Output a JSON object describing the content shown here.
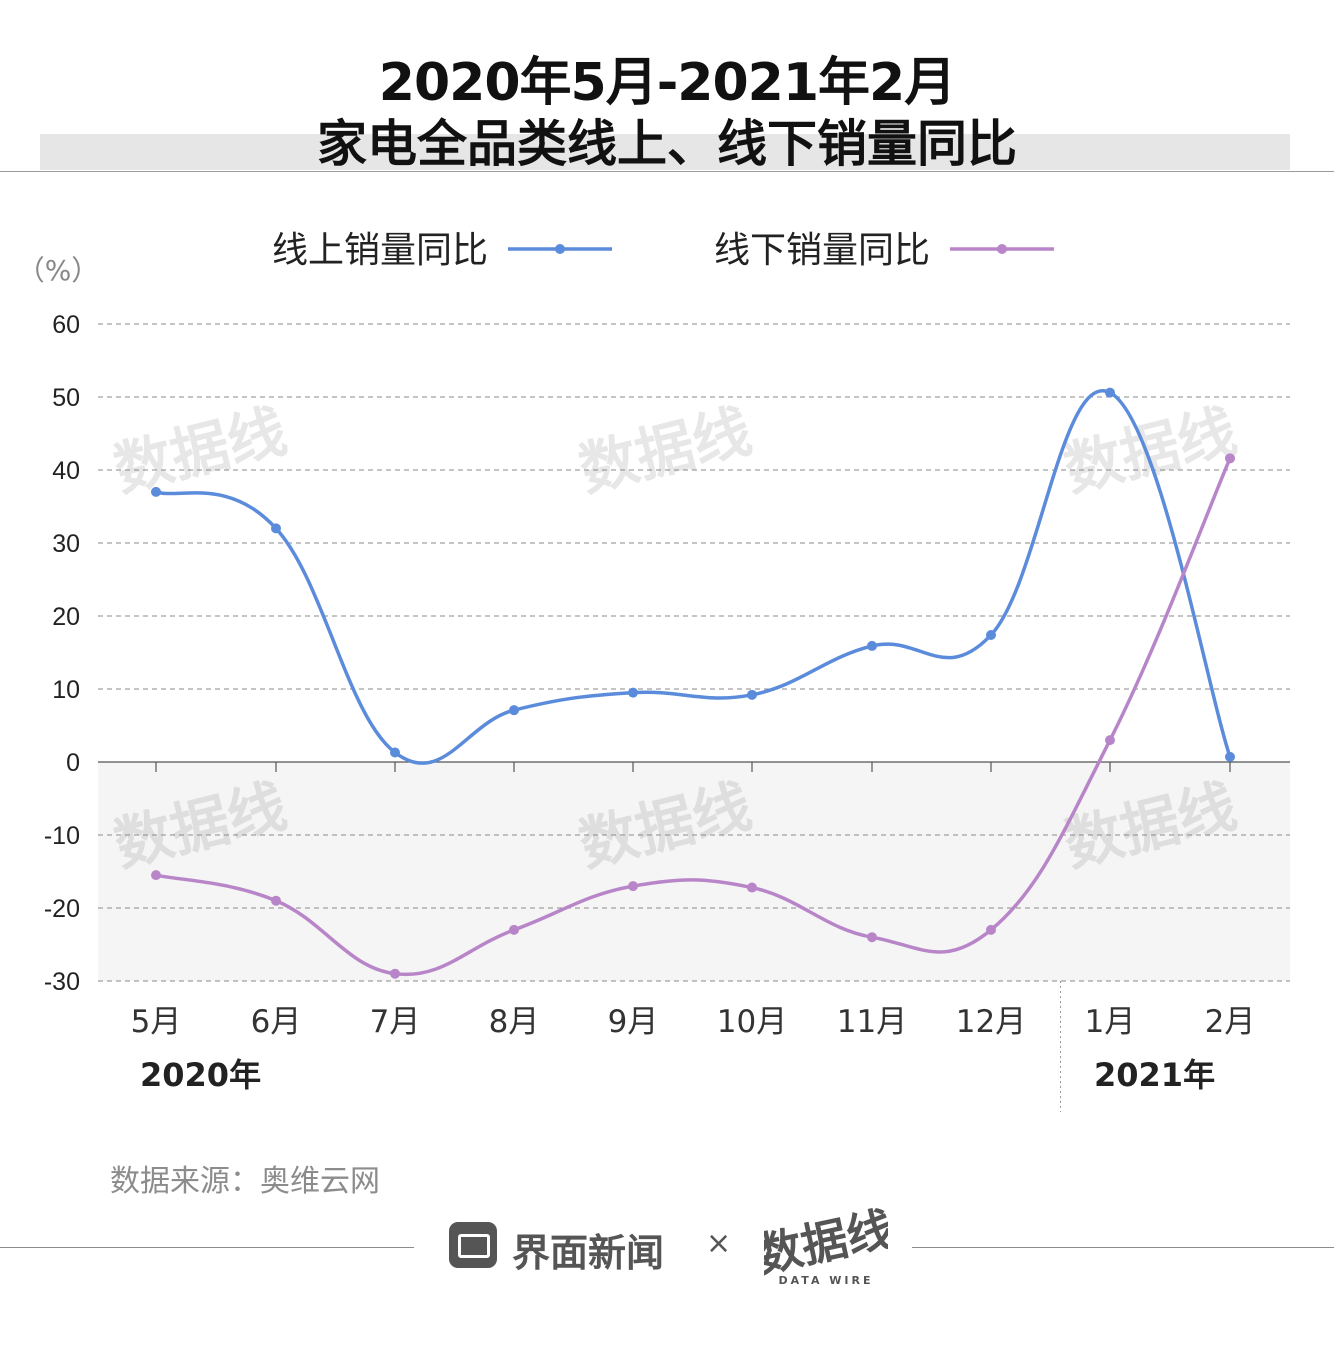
{
  "title": {
    "line1": "2020年5月-2021年2月",
    "line2": "家电全品类线上、线下销量同比"
  },
  "colors": {
    "online": "#5b8bdb",
    "offline": "#b886c8",
    "negative_band": "#f5f5f5",
    "grid": "#8a8a8a",
    "title_band": "#e6e6e6"
  },
  "chart_data": {
    "type": "line",
    "unit_label": "（%）",
    "categories": [
      "5月",
      "6月",
      "7月",
      "8月",
      "9月",
      "10月",
      "11月",
      "12月",
      "1月",
      "2月"
    ],
    "year_labels": [
      {
        "label": "2020年",
        "category_index": 0
      },
      {
        "label": "2021年",
        "category_index": 8
      }
    ],
    "series": [
      {
        "name": "线上销量同比",
        "color": "#5b8bdb",
        "values": [
          37.0,
          32.0,
          1.3,
          7.1,
          9.5,
          9.2,
          15.9,
          17.4,
          50.6,
          0.7
        ]
      },
      {
        "name": "线下销量同比",
        "color": "#b886c8",
        "values": [
          -15.5,
          -19.0,
          -29.0,
          -23.0,
          -17.0,
          -17.2,
          -24.0,
          -23.0,
          3.0,
          41.6
        ]
      }
    ],
    "ylim": [
      -30,
      60
    ],
    "yticks": [
      60,
      50,
      40,
      30,
      20,
      10,
      0,
      -10,
      -20,
      -30
    ],
    "grid": true,
    "legend_position": "top-center",
    "xlabel": "",
    "ylabel": ""
  },
  "source": "数据来源：奥维云网",
  "footer": {
    "brand": "界面新闻",
    "separator": "×",
    "partner_logo": "数据线",
    "partner_logo_sub": "DATA WIRE"
  }
}
